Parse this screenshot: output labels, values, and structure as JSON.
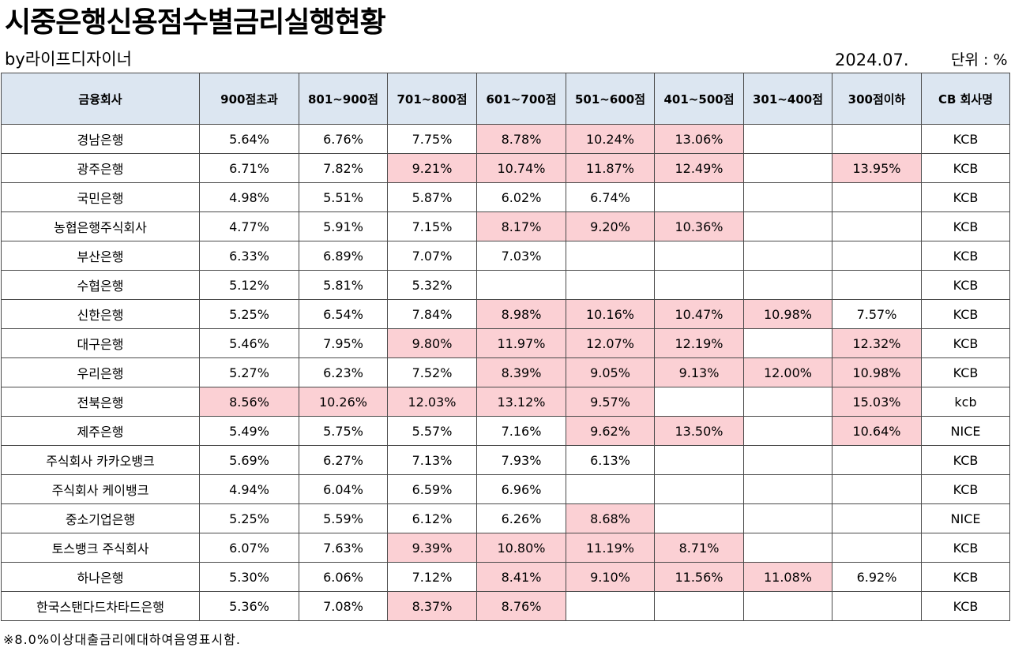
{
  "title": "시중은행신용점수별금리실행현황",
  "author": "by라이프디자이너",
  "date": "2024.07.",
  "unit": "단위 : %",
  "highlight_color": "#fbd0d4",
  "header_color": "#dce6f1",
  "columns": [
    "금융회사",
    "900점초과",
    "801~900점",
    "701~800점",
    "601~700점",
    "501~600점",
    "401~500점",
    "301~400점",
    "300점이하",
    "CB 회사명"
  ],
  "rows": [
    {
      "cells": [
        "경남은행",
        "5.64%",
        "6.76%",
        "7.75%",
        "8.78%",
        "10.24%",
        "13.06%",
        "",
        "",
        "KCB"
      ],
      "hl": [
        4,
        5,
        6
      ]
    },
    {
      "cells": [
        "광주은행",
        "6.71%",
        "7.82%",
        "9.21%",
        "10.74%",
        "11.87%",
        "12.49%",
        "",
        "13.95%",
        "KCB"
      ],
      "hl": [
        3,
        4,
        5,
        6,
        8
      ]
    },
    {
      "cells": [
        "국민은행",
        "4.98%",
        "5.51%",
        "5.87%",
        "6.02%",
        "6.74%",
        "",
        "",
        "",
        "KCB"
      ],
      "hl": []
    },
    {
      "cells": [
        "농협은행주식회사",
        "4.77%",
        "5.91%",
        "7.15%",
        "8.17%",
        "9.20%",
        "10.36%",
        "",
        "",
        "KCB"
      ],
      "hl": [
        4,
        5,
        6
      ]
    },
    {
      "cells": [
        "부산은행",
        "6.33%",
        "6.89%",
        "7.07%",
        "7.03%",
        "",
        "",
        "",
        "",
        "KCB"
      ],
      "hl": []
    },
    {
      "cells": [
        "수협은행",
        "5.12%",
        "5.81%",
        "5.32%",
        "",
        "",
        "",
        "",
        "",
        "KCB"
      ],
      "hl": []
    },
    {
      "cells": [
        "신한은행",
        "5.25%",
        "6.54%",
        "7.84%",
        "8.98%",
        "10.16%",
        "10.47%",
        "10.98%",
        "7.57%",
        "KCB"
      ],
      "hl": [
        4,
        5,
        6,
        7
      ]
    },
    {
      "cells": [
        "대구은행",
        "5.46%",
        "7.95%",
        "9.80%",
        "11.97%",
        "12.07%",
        "12.19%",
        "",
        "12.32%",
        "KCB"
      ],
      "hl": [
        3,
        4,
        5,
        6,
        8
      ]
    },
    {
      "cells": [
        "우리은행",
        "5.27%",
        "6.23%",
        "7.52%",
        "8.39%",
        "9.05%",
        "9.13%",
        "12.00%",
        "10.98%",
        "KCB"
      ],
      "hl": [
        4,
        5,
        6,
        7,
        8
      ]
    },
    {
      "cells": [
        "전북은행",
        "8.56%",
        "10.26%",
        "12.03%",
        "13.12%",
        "9.57%",
        "",
        "",
        "15.03%",
        "kcb"
      ],
      "hl": [
        1,
        2,
        3,
        4,
        5,
        8
      ]
    },
    {
      "cells": [
        "제주은행",
        "5.49%",
        "5.75%",
        "5.57%",
        "7.16%",
        "9.62%",
        "13.50%",
        "",
        "10.64%",
        "NICE"
      ],
      "hl": [
        5,
        6,
        8
      ]
    },
    {
      "cells": [
        "주식회사 카카오뱅크",
        "5.69%",
        "6.27%",
        "7.13%",
        "7.93%",
        "6.13%",
        "",
        "",
        "",
        "KCB"
      ],
      "hl": []
    },
    {
      "cells": [
        "주식회사 케이뱅크",
        "4.94%",
        "6.04%",
        "6.59%",
        "6.96%",
        "",
        "",
        "",
        "",
        "KCB"
      ],
      "hl": []
    },
    {
      "cells": [
        "중소기업은행",
        "5.25%",
        "5.59%",
        "6.12%",
        "6.26%",
        "8.68%",
        "",
        "",
        "",
        "NICE"
      ],
      "hl": [
        5
      ]
    },
    {
      "cells": [
        "토스뱅크 주식회사",
        "6.07%",
        "7.63%",
        "9.39%",
        "10.80%",
        "11.19%",
        "8.71%",
        "",
        "",
        "KCB"
      ],
      "hl": [
        3,
        4,
        5,
        6
      ]
    },
    {
      "cells": [
        "하나은행",
        "5.30%",
        "6.06%",
        "7.12%",
        "8.41%",
        "9.10%",
        "11.56%",
        "11.08%",
        "6.92%",
        "KCB"
      ],
      "hl": [
        4,
        5,
        6,
        7
      ]
    },
    {
      "cells": [
        "한국스탠다드차타드은행",
        "5.36%",
        "7.08%",
        "8.37%",
        "8.76%",
        "",
        "",
        "",
        "",
        "KCB"
      ],
      "hl": [
        3,
        4
      ]
    }
  ],
  "note": "※8.0%이상대출금리에대하여음영표시함."
}
